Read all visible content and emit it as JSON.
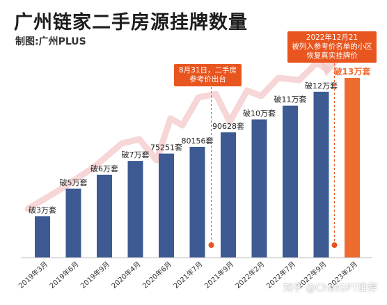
{
  "header": {
    "title": "广州链家二手房源挂牌数量",
    "subtitle": "制图:广州PLUS"
  },
  "callouts": {
    "first": [
      "8月31日，二手房",
      "参考价出台"
    ],
    "second": [
      "2022年12月21",
      "被列入参考价名单的小区",
      "恢复真实挂牌价"
    ]
  },
  "watermark": "知乎 @ChatGPT推荐",
  "colors": {
    "bar": "#3d5a92",
    "highlight": "#ee6b2f",
    "callout": "#e8551f",
    "trend_arrow": "#f3c8c8"
  },
  "chart_data": {
    "type": "bar",
    "title": "广州链家二手房源挂牌数量",
    "categories": [
      "2019年3月",
      "2019年6月",
      "2019年9月",
      "2020年4月",
      "2020年6月",
      "2021年7月",
      "2021年9月",
      "2022年2月",
      "2022年7月",
      "2022年9月",
      "2023年2月"
    ],
    "values": [
      30000,
      50000,
      60000,
      70000,
      75251,
      80156,
      90628,
      100000,
      110000,
      120000,
      130000
    ],
    "labels": [
      "破3万套",
      "破5万套",
      "破6万套",
      "破7万套",
      "75251套",
      "80156套",
      "90628套",
      "破10万套",
      "破11万套",
      "破12万套",
      "破13万套"
    ],
    "highlight_index": 10,
    "markers_at": [
      "2021年7月",
      "2022年9月"
    ],
    "grid": false,
    "legend": "none"
  }
}
